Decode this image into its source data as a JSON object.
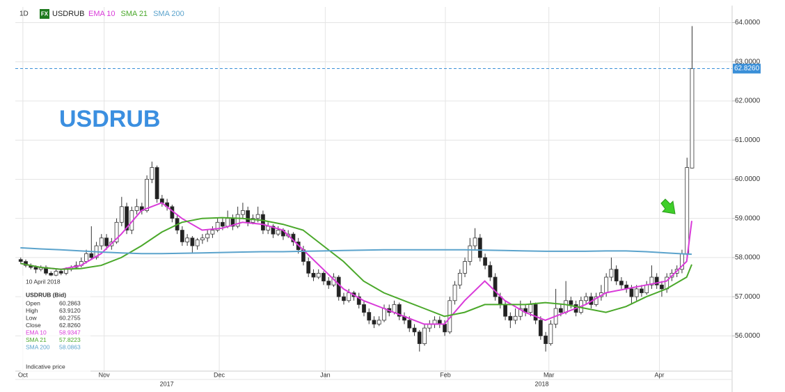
{
  "chart_data": {
    "type": "candlestick",
    "interval": "1D",
    "badge": "FX",
    "symbol": "USDRUB",
    "title": "USDRUB",
    "ylim": [
      55.1,
      64.4
    ],
    "xlim": [
      -1,
      141
    ],
    "yticks": [
      {
        "value": 56,
        "label": "56.0000"
      },
      {
        "value": 57,
        "label": "57.0000"
      },
      {
        "value": 58,
        "label": "58.0000"
      },
      {
        "value": 59,
        "label": "59.0000"
      },
      {
        "value": 60,
        "label": "60.0000"
      },
      {
        "value": 61,
        "label": "61.0000"
      },
      {
        "value": 62,
        "label": "62.0000"
      },
      {
        "value": 63,
        "label": "63.0000"
      },
      {
        "value": 64,
        "label": "64.0000"
      }
    ],
    "xticks": [
      {
        "value": 0.5,
        "label": "Oct"
      },
      {
        "value": 16.6,
        "label": "Nov"
      },
      {
        "value": 39.4,
        "label": "Dec"
      },
      {
        "value": 60.4,
        "label": "Jan"
      },
      {
        "value": 84.2,
        "label": "Feb"
      },
      {
        "value": 104.7,
        "label": "Mar"
      },
      {
        "value": 126.6,
        "label": "Apr"
      }
    ],
    "year_ticks": [
      {
        "value": 29,
        "label": "2017"
      },
      {
        "value": 103.3,
        "label": "2018"
      }
    ],
    "grid": true,
    "up_color": "#ffffff",
    "down_color": "#222222",
    "last_price": {
      "value": 62.826,
      "label": "62.8260",
      "color": "#3a8fd8"
    },
    "ohlc": [
      [
        57.95,
        58.0,
        57.85,
        57.9
      ],
      [
        57.9,
        57.95,
        57.75,
        57.8
      ],
      [
        57.8,
        57.85,
        57.7,
        57.75
      ],
      [
        57.75,
        57.8,
        57.6,
        57.7
      ],
      [
        57.7,
        57.8,
        57.65,
        57.75
      ],
      [
        57.75,
        57.8,
        57.55,
        57.6
      ],
      [
        57.6,
        57.65,
        57.5,
        57.55
      ],
      [
        57.55,
        57.7,
        57.5,
        57.65
      ],
      [
        57.65,
        57.7,
        57.55,
        57.6
      ],
      [
        57.6,
        57.75,
        57.55,
        57.7
      ],
      [
        57.7,
        57.8,
        57.65,
        57.75
      ],
      [
        57.75,
        57.9,
        57.7,
        57.8
      ],
      [
        57.8,
        58.0,
        57.75,
        57.9
      ],
      [
        57.9,
        58.2,
        57.85,
        58.1
      ],
      [
        58.1,
        58.8,
        57.95,
        58.0
      ],
      [
        58.0,
        58.4,
        57.95,
        58.3
      ],
      [
        58.3,
        58.6,
        58.2,
        58.5
      ],
      [
        58.5,
        58.6,
        58.2,
        58.3
      ],
      [
        58.3,
        58.5,
        58.2,
        58.4
      ],
      [
        58.4,
        59.0,
        58.35,
        58.9
      ],
      [
        58.9,
        59.55,
        58.8,
        59.3
      ],
      [
        59.3,
        59.4,
        58.6,
        58.7
      ],
      [
        58.7,
        59.3,
        58.6,
        59.2
      ],
      [
        59.2,
        59.5,
        59.1,
        59.3
      ],
      [
        59.3,
        59.4,
        59.1,
        59.2
      ],
      [
        59.2,
        60.1,
        59.15,
        60.0
      ],
      [
        60.0,
        60.45,
        59.9,
        60.3
      ],
      [
        60.3,
        60.35,
        59.4,
        59.5
      ],
      [
        59.5,
        59.6,
        59.3,
        59.4
      ],
      [
        59.4,
        59.5,
        59.2,
        59.3
      ],
      [
        59.3,
        59.35,
        58.9,
        59.0
      ],
      [
        59.0,
        59.1,
        58.6,
        58.7
      ],
      [
        58.7,
        58.8,
        58.3,
        58.4
      ],
      [
        58.4,
        58.6,
        58.3,
        58.5
      ],
      [
        58.5,
        58.55,
        58.1,
        58.3
      ],
      [
        58.3,
        58.5,
        58.2,
        58.45
      ],
      [
        58.45,
        58.6,
        58.35,
        58.5
      ],
      [
        58.5,
        58.7,
        58.4,
        58.6
      ],
      [
        58.6,
        58.8,
        58.5,
        58.7
      ],
      [
        58.7,
        59.0,
        58.65,
        58.9
      ],
      [
        58.9,
        59.0,
        58.7,
        58.8
      ],
      [
        58.8,
        59.2,
        58.75,
        59.0
      ],
      [
        59.0,
        59.1,
        58.7,
        58.8
      ],
      [
        58.8,
        59.3,
        58.75,
        59.1
      ],
      [
        59.1,
        59.4,
        59.0,
        59.2
      ],
      [
        59.2,
        59.3,
        58.8,
        58.9
      ],
      [
        58.9,
        59.1,
        58.85,
        59.0
      ],
      [
        59.0,
        59.3,
        58.9,
        59.1
      ],
      [
        59.1,
        59.2,
        58.6,
        58.7
      ],
      [
        58.7,
        58.9,
        58.6,
        58.8
      ],
      [
        58.8,
        58.85,
        58.5,
        58.6
      ],
      [
        58.6,
        58.8,
        58.55,
        58.7
      ],
      [
        58.7,
        58.75,
        58.45,
        58.55
      ],
      [
        58.55,
        58.7,
        58.5,
        58.6
      ],
      [
        58.6,
        58.65,
        58.3,
        58.4
      ],
      [
        58.4,
        58.5,
        58.1,
        58.2
      ],
      [
        58.2,
        58.3,
        57.8,
        57.9
      ],
      [
        57.9,
        58.0,
        57.5,
        57.6
      ],
      [
        57.6,
        57.7,
        57.4,
        57.5
      ],
      [
        57.5,
        57.7,
        57.45,
        57.6
      ],
      [
        57.6,
        57.65,
        57.3,
        57.4
      ],
      [
        57.4,
        57.5,
        57.2,
        57.3
      ],
      [
        57.3,
        57.6,
        57.25,
        57.5
      ],
      [
        57.5,
        57.55,
        56.9,
        57.0
      ],
      [
        57.0,
        57.1,
        56.8,
        56.9
      ],
      [
        56.9,
        57.2,
        56.85,
        57.1
      ],
      [
        57.1,
        57.15,
        56.9,
        57.0
      ],
      [
        57.0,
        57.1,
        56.7,
        56.8
      ],
      [
        56.8,
        56.9,
        56.5,
        56.6
      ],
      [
        56.6,
        56.7,
        56.3,
        56.4
      ],
      [
        56.4,
        56.5,
        56.2,
        56.3
      ],
      [
        56.3,
        56.5,
        56.25,
        56.4
      ],
      [
        56.4,
        56.8,
        56.35,
        56.7
      ],
      [
        56.7,
        56.8,
        56.5,
        56.6
      ],
      [
        56.6,
        56.9,
        56.55,
        56.8
      ],
      [
        56.8,
        56.85,
        56.4,
        56.5
      ],
      [
        56.5,
        56.6,
        56.3,
        56.4
      ],
      [
        56.4,
        56.5,
        56.1,
        56.2
      ],
      [
        56.2,
        56.3,
        56.0,
        56.1
      ],
      [
        56.1,
        56.15,
        55.6,
        55.8
      ],
      [
        55.8,
        56.3,
        55.75,
        56.2
      ],
      [
        56.2,
        56.4,
        56.1,
        56.3
      ],
      [
        56.3,
        56.5,
        56.2,
        56.4
      ],
      [
        56.4,
        56.5,
        56.2,
        56.3
      ],
      [
        56.3,
        56.4,
        56.0,
        56.1
      ],
      [
        56.1,
        57.0,
        56.05,
        56.9
      ],
      [
        56.9,
        57.4,
        56.8,
        57.3
      ],
      [
        57.3,
        57.7,
        57.2,
        57.6
      ],
      [
        57.6,
        58.0,
        57.5,
        57.9
      ],
      [
        57.9,
        58.5,
        57.8,
        58.3
      ],
      [
        58.3,
        58.75,
        58.2,
        58.5
      ],
      [
        58.5,
        58.6,
        57.9,
        58.0
      ],
      [
        58.0,
        58.1,
        57.7,
        57.8
      ],
      [
        57.8,
        57.9,
        57.4,
        57.5
      ],
      [
        57.5,
        57.6,
        56.9,
        57.0
      ],
      [
        57.0,
        57.1,
        56.7,
        56.8
      ],
      [
        56.8,
        56.9,
        56.4,
        56.5
      ],
      [
        56.5,
        56.6,
        56.2,
        56.4
      ],
      [
        56.4,
        56.7,
        56.3,
        56.5
      ],
      [
        56.5,
        56.9,
        56.4,
        56.7
      ],
      [
        56.7,
        56.8,
        56.5,
        56.6
      ],
      [
        56.6,
        56.9,
        56.5,
        56.8
      ],
      [
        56.8,
        56.85,
        56.3,
        56.4
      ],
      [
        56.4,
        56.5,
        55.9,
        56.0
      ],
      [
        56.0,
        56.1,
        55.6,
        55.8
      ],
      [
        55.8,
        56.4,
        55.75,
        56.3
      ],
      [
        56.3,
        57.2,
        56.2,
        56.7
      ],
      [
        56.7,
        56.8,
        56.5,
        56.6
      ],
      [
        56.6,
        57.4,
        56.55,
        56.9
      ],
      [
        56.9,
        57.0,
        56.7,
        56.8
      ],
      [
        56.8,
        56.9,
        56.5,
        56.6
      ],
      [
        56.6,
        57.0,
        56.55,
        56.9
      ],
      [
        56.9,
        57.1,
        56.8,
        57.0
      ],
      [
        57.0,
        57.1,
        56.7,
        56.8
      ],
      [
        56.8,
        57.1,
        56.75,
        57.0
      ],
      [
        57.0,
        57.3,
        56.9,
        57.1
      ],
      [
        57.1,
        57.6,
        57.0,
        57.5
      ],
      [
        57.5,
        58.0,
        57.4,
        57.7
      ],
      [
        57.7,
        57.8,
        57.3,
        57.4
      ],
      [
        57.4,
        57.5,
        57.2,
        57.3
      ],
      [
        57.3,
        57.4,
        57.1,
        57.2
      ],
      [
        57.2,
        57.3,
        56.8,
        57.0
      ],
      [
        57.0,
        57.3,
        56.9,
        57.2
      ],
      [
        57.2,
        57.3,
        57.0,
        57.1
      ],
      [
        57.1,
        57.4,
        57.05,
        57.3
      ],
      [
        57.3,
        57.8,
        57.2,
        57.5
      ],
      [
        57.5,
        57.6,
        57.2,
        57.3
      ],
      [
        57.3,
        57.4,
        57.0,
        57.2
      ],
      [
        57.2,
        57.6,
        57.1,
        57.5
      ],
      [
        57.5,
        57.7,
        57.4,
        57.6
      ],
      [
        57.6,
        57.8,
        57.5,
        57.7
      ],
      [
        57.7,
        58.2,
        57.6,
        58.1
      ],
      [
        58.1,
        60.55,
        58.0,
        60.3
      ],
      [
        60.2863,
        63.912,
        60.2755,
        62.826
      ]
    ],
    "series": [
      {
        "name": "EMA 10",
        "color": "#d93ad9",
        "x": [
          0,
          4,
          8,
          12,
          16,
          20,
          24,
          28,
          32,
          36,
          40,
          44,
          48,
          52,
          56,
          60,
          64,
          68,
          72,
          76,
          80,
          84,
          88,
          92,
          96,
          100,
          104,
          108,
          112,
          116,
          120,
          124,
          128,
          132,
          133
        ],
        "values": [
          57.85,
          57.75,
          57.7,
          57.8,
          58.1,
          58.6,
          59.2,
          59.4,
          59.0,
          58.7,
          58.75,
          58.9,
          58.85,
          58.7,
          58.2,
          57.7,
          57.2,
          56.9,
          56.7,
          56.5,
          56.3,
          56.3,
          56.9,
          57.4,
          56.9,
          56.6,
          56.4,
          56.6,
          56.8,
          57.1,
          57.2,
          57.3,
          57.4,
          57.9,
          58.9347
        ]
      },
      {
        "name": "SMA 21",
        "color": "#4aa82a",
        "x": [
          0,
          4,
          8,
          12,
          16,
          20,
          24,
          28,
          32,
          36,
          40,
          44,
          48,
          52,
          56,
          60,
          64,
          68,
          72,
          76,
          80,
          84,
          88,
          92,
          96,
          100,
          104,
          108,
          112,
          116,
          120,
          124,
          128,
          132,
          133
        ],
        "values": [
          57.85,
          57.75,
          57.7,
          57.72,
          57.8,
          58.0,
          58.3,
          58.65,
          58.9,
          59.0,
          59.02,
          59.0,
          58.95,
          58.85,
          58.7,
          58.3,
          57.9,
          57.4,
          57.1,
          56.9,
          56.7,
          56.5,
          56.6,
          56.8,
          56.8,
          56.8,
          56.85,
          56.8,
          56.7,
          56.6,
          56.75,
          57.0,
          57.2,
          57.5,
          57.8223
        ]
      },
      {
        "name": "SMA 200",
        "color": "#5ba3cc",
        "x": [
          0,
          4,
          8,
          12,
          16,
          20,
          24,
          28,
          32,
          36,
          40,
          44,
          48,
          52,
          56,
          60,
          64,
          68,
          72,
          76,
          80,
          84,
          88,
          92,
          96,
          100,
          104,
          108,
          112,
          116,
          120,
          124,
          128,
          132,
          133
        ],
        "values": [
          58.25,
          58.22,
          58.2,
          58.17,
          58.14,
          58.12,
          58.1,
          58.1,
          58.11,
          58.12,
          58.13,
          58.14,
          58.15,
          58.15,
          58.16,
          58.17,
          58.18,
          58.19,
          58.2,
          58.2,
          58.2,
          58.2,
          58.2,
          58.19,
          58.18,
          58.17,
          58.16,
          58.16,
          58.16,
          58.17,
          58.17,
          58.15,
          58.12,
          58.09,
          58.0863
        ]
      }
    ],
    "info": {
      "date": "10 April 2018",
      "heading": "USDRUB (Bid)",
      "footer": "Indicative price",
      "rows": [
        {
          "label": "Open",
          "value": "60.2863"
        },
        {
          "label": "High",
          "value": "63.9120"
        },
        {
          "label": "Low",
          "value": "60.2755"
        },
        {
          "label": "Close",
          "value": "62.8260"
        },
        {
          "label": "EMA 10",
          "value": "58.9347",
          "color": "#d93ad9"
        },
        {
          "label": "SMA 21",
          "value": "57.8223",
          "color": "#4aa82a"
        },
        {
          "label": "SMA 200",
          "value": "58.0863",
          "color": "#5ba3cc"
        }
      ]
    }
  }
}
